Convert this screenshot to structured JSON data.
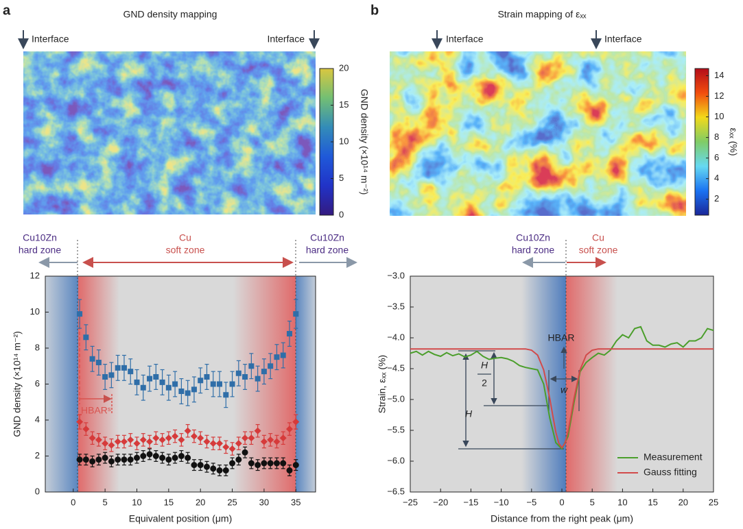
{
  "chart_data": [
    {
      "type": "heatmap",
      "panel": "a",
      "title": "GND density mapping",
      "annotations": [
        "Interface",
        "Interface"
      ],
      "colormap": "parula",
      "colorbar": {
        "label": "GND density (×10¹⁴ m⁻²)",
        "lim": [
          0,
          20
        ],
        "ticks": [
          0,
          5,
          10,
          15,
          20
        ]
      }
    },
    {
      "type": "heatmap",
      "panel": "b",
      "title": "Strain mapping of εₓₓ",
      "annotations": [
        "Interface",
        "Interface"
      ],
      "colormap": "jet",
      "colorbar": {
        "label": "εₓₓ (%)",
        "lim": [
          0.45,
          14.7
        ],
        "ticks": [
          2,
          4,
          6,
          8,
          10,
          12,
          14
        ]
      }
    },
    {
      "type": "scatter",
      "xlabel": "Equivalent position (μm)",
      "ylabel": "GND density (×10¹⁴ m⁻²)",
      "zone_labels": [
        [
          "Cu10Zn",
          "hard zone"
        ],
        [
          "Cu",
          "soft zone"
        ],
        [
          "Cu10Zn",
          "hard zone"
        ]
      ],
      "annotation": "HBARˢ",
      "xlim": [
        -4.4,
        38.1
      ],
      "xticks": [
        0,
        5,
        10,
        15,
        20,
        25,
        30,
        35
      ],
      "ylim": [
        0,
        12
      ],
      "yticks": [
        0,
        2,
        4,
        6,
        8,
        10,
        12
      ],
      "x": [
        1,
        2,
        3,
        4,
        5,
        6,
        7,
        8,
        9,
        10,
        11,
        12,
        13,
        14,
        15,
        16,
        17,
        18,
        19,
        20,
        21,
        22,
        23,
        24,
        25,
        26,
        27,
        28,
        29,
        30,
        31,
        32,
        33,
        34,
        35
      ],
      "series": [
        {
          "marker": "square",
          "color": "#2f6ea8",
          "values": [
            9.9,
            8.6,
            7.4,
            7.2,
            6.4,
            6.5,
            6.9,
            6.9,
            6.7,
            6.1,
            5.8,
            6.3,
            6.4,
            6.1,
            5.8,
            6.0,
            5.6,
            5.5,
            5.7,
            6.2,
            6.4,
            6.0,
            6.0,
            5.4,
            6.0,
            6.6,
            6.4,
            7.0,
            6.3,
            6.7,
            7.0,
            7.5,
            7.6,
            8.8,
            9.9
          ],
          "errors": [
            0.8,
            0.7,
            0.7,
            0.7,
            0.7,
            0.7,
            0.7,
            0.7,
            0.7,
            0.7,
            0.7,
            0.7,
            0.7,
            0.7,
            0.7,
            0.7,
            0.7,
            0.7,
            0.7,
            0.7,
            0.7,
            0.7,
            0.7,
            0.7,
            0.7,
            0.7,
            0.7,
            0.7,
            0.7,
            0.7,
            0.7,
            0.7,
            0.7,
            0.7,
            0.8
          ]
        },
        {
          "marker": "diamond",
          "color": "#d63a3a",
          "values": [
            3.9,
            3.5,
            3.0,
            2.9,
            2.7,
            2.6,
            2.8,
            2.8,
            2.9,
            2.7,
            2.9,
            2.8,
            3.0,
            2.9,
            3.0,
            3.1,
            2.9,
            3.4,
            3.1,
            3.0,
            2.8,
            2.7,
            2.7,
            2.5,
            2.4,
            2.7,
            3.0,
            3.0,
            3.4,
            2.8,
            2.9,
            2.8,
            3.0,
            3.5,
            3.9
          ],
          "errors": [
            0.4,
            0.35,
            0.35,
            0.35,
            0.35,
            0.35,
            0.35,
            0.35,
            0.35,
            0.35,
            0.35,
            0.35,
            0.35,
            0.35,
            0.35,
            0.35,
            0.35,
            0.35,
            0.35,
            0.35,
            0.35,
            0.35,
            0.35,
            0.35,
            0.35,
            0.35,
            0.35,
            0.35,
            0.35,
            0.35,
            0.35,
            0.35,
            0.35,
            0.35,
            0.4
          ]
        },
        {
          "marker": "circle",
          "color": "#111111",
          "values": [
            1.8,
            1.8,
            1.7,
            1.8,
            1.9,
            1.7,
            1.8,
            1.8,
            1.8,
            1.9,
            2.0,
            2.1,
            2.0,
            1.9,
            1.8,
            1.9,
            2.0,
            1.9,
            1.5,
            1.5,
            1.4,
            1.3,
            1.2,
            1.2,
            1.6,
            1.8,
            2.2,
            1.6,
            1.5,
            1.6,
            1.6,
            1.6,
            1.6,
            1.2,
            1.5
          ],
          "errors": [
            0.3,
            0.3,
            0.3,
            0.3,
            0.3,
            0.3,
            0.3,
            0.3,
            0.3,
            0.3,
            0.3,
            0.3,
            0.3,
            0.3,
            0.3,
            0.3,
            0.3,
            0.3,
            0.3,
            0.3,
            0.3,
            0.3,
            0.3,
            0.3,
            0.3,
            0.3,
            0.3,
            0.3,
            0.3,
            0.3,
            0.3,
            0.3,
            0.3,
            0.3,
            0.3
          ]
        }
      ]
    },
    {
      "type": "line",
      "xlabel": "Distance from the right peak (μm)",
      "ylabel": "Strain, εₓₓ (%)",
      "zone_labels": [
        [
          "Cu10Zn",
          "hard zone"
        ],
        [
          "Cu",
          "soft zone"
        ]
      ],
      "annotations": [
        "HBAR",
        "H",
        "H",
        "2",
        "w"
      ],
      "legend": "lower right",
      "xlim": [
        -25,
        25
      ],
      "xticks": [
        {
          "value": -25,
          "label": "−25"
        },
        {
          "value": -20,
          "label": "−20"
        },
        {
          "value": -15,
          "label": "−15"
        },
        {
          "value": -10,
          "label": "−10"
        },
        {
          "value": -5,
          "label": "−5"
        },
        0,
        5,
        10,
        15,
        20,
        25
      ],
      "ylim": [
        -6.5,
        -3.0
      ],
      "yticks": [
        {
          "value": -6.5,
          "label": "−6.5"
        },
        {
          "value": -6.0,
          "label": "−6.0"
        },
        {
          "value": -5.5,
          "label": "−5.5"
        },
        {
          "value": -5.0,
          "label": "−5.0"
        },
        {
          "value": -4.5,
          "label": "−4.5"
        },
        {
          "value": -4.0,
          "label": "−4.0"
        },
        {
          "value": -3.5,
          "label": "−3.5"
        },
        {
          "value": -3.0,
          "label": "−3.0"
        }
      ],
      "series": [
        {
          "name": "Measurement",
          "color": "#4a9e2a",
          "x": [
            -25,
            -24,
            -23,
            -22,
            -21,
            -20,
            -19,
            -18,
            -17,
            -16,
            -15,
            -14,
            -13,
            -12,
            -11,
            -10,
            -9,
            -8,
            -7,
            -6,
            -5,
            -4,
            -3,
            -2,
            -1,
            0,
            1,
            2,
            3,
            4,
            5,
            6,
            7,
            8,
            9,
            10,
            11,
            12,
            13,
            14,
            15,
            16,
            17,
            18,
            19,
            20,
            21,
            22,
            23,
            24,
            25
          ],
          "values": [
            -4.25,
            -4.22,
            -4.28,
            -4.22,
            -4.27,
            -4.3,
            -4.24,
            -4.29,
            -4.26,
            -4.31,
            -4.28,
            -4.22,
            -4.3,
            -4.35,
            -4.33,
            -4.32,
            -4.34,
            -4.38,
            -4.45,
            -4.48,
            -4.5,
            -4.52,
            -4.75,
            -5.3,
            -5.7,
            -5.8,
            -5.6,
            -5.05,
            -4.55,
            -4.4,
            -4.32,
            -4.25,
            -4.28,
            -4.2,
            -4.05,
            -3.95,
            -4.0,
            -3.85,
            -3.82,
            -4.05,
            -4.12,
            -4.12,
            -4.15,
            -4.1,
            -4.08,
            -4.15,
            -4.05,
            -4.05,
            -4.0,
            -3.85,
            -3.88
          ]
        },
        {
          "name": "Gauss fitting",
          "color": "#d24a4a",
          "x": [
            -25,
            -10,
            -6,
            -5,
            -4,
            -3,
            -2,
            -1.5,
            -1,
            -0.5,
            0,
            0.5,
            1,
            1.5,
            2,
            3,
            4,
            5,
            6,
            10,
            25
          ],
          "values": [
            -4.18,
            -4.18,
            -4.18,
            -4.2,
            -4.28,
            -4.52,
            -4.98,
            -5.26,
            -5.53,
            -5.71,
            -5.78,
            -5.71,
            -5.53,
            -5.26,
            -4.98,
            -4.52,
            -4.28,
            -4.2,
            -4.18,
            -4.18,
            -4.18
          ]
        }
      ]
    }
  ]
}
